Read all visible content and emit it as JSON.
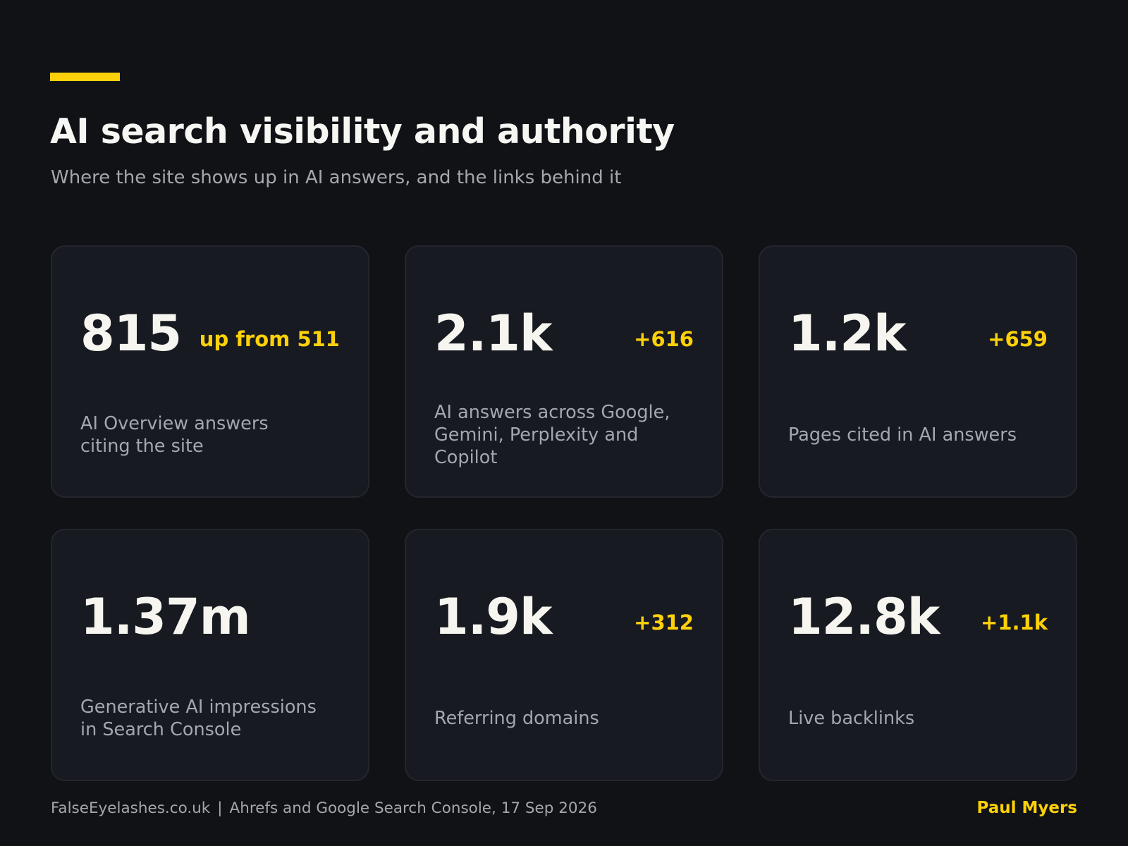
{
  "header": {
    "title": "AI search visibility and authority",
    "subtitle": "Where the site shows up in AI answers, and the links behind it"
  },
  "cards": [
    {
      "value": "815",
      "delta": "up from 511",
      "label": "AI Overview answers\nciting the site"
    },
    {
      "value": "2.1k",
      "delta": "+616",
      "label": "AI answers across Google,\nGemini, Perplexity and Copilot"
    },
    {
      "value": "1.2k",
      "delta": "+659",
      "label": "Pages cited in AI answers"
    },
    {
      "value": "1.37m",
      "delta": "",
      "label": "Generative AI impressions\nin Search Console"
    },
    {
      "value": "1.9k",
      "delta": "+312",
      "label": "Referring domains"
    },
    {
      "value": "12.8k",
      "delta": "+1.1k",
      "label": "Live backlinks"
    }
  ],
  "footer": {
    "site": "FalseEyelashes.co.uk",
    "separator": "|",
    "source": "Ahrefs and Google Search Console, 17 Sep 2026",
    "author": "Paul Myers"
  },
  "colors": {
    "background": "#111216",
    "card": "#181a21",
    "accent": "#fdd109",
    "text": "#f6f5ef",
    "muted": "#a3a7ae"
  }
}
